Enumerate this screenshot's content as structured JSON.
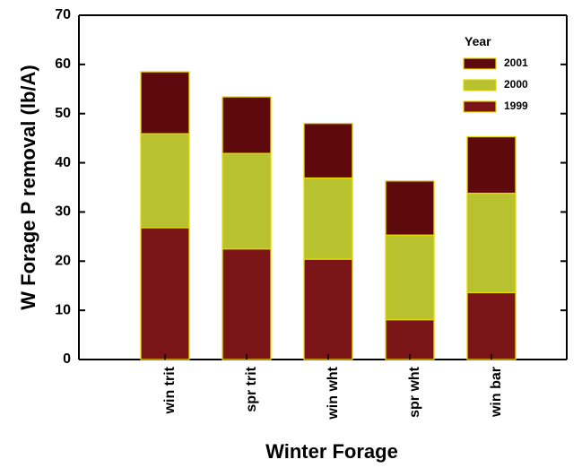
{
  "chart_data": {
    "type": "bar",
    "stacked": true,
    "categories": [
      "win trit",
      "spr trit",
      "win wht",
      "spr wht",
      "win bar"
    ],
    "series": [
      {
        "name": "1999",
        "color": "#7b1416",
        "values": [
          26.8,
          22.5,
          20.4,
          8.1,
          13.6
        ]
      },
      {
        "name": "2000",
        "color": "#b8c12e",
        "values": [
          19.1,
          19.4,
          16.5,
          17.2,
          20.2
        ]
      },
      {
        "name": "2001",
        "color": "#5e0a0c",
        "values": [
          12.6,
          11.5,
          11.1,
          11.0,
          11.5
        ]
      }
    ],
    "xlabel": "Winter Forage",
    "ylabel": "W Forage P removal (lb/A)",
    "ylim": [
      0,
      70
    ],
    "yticks": [
      0,
      10,
      20,
      30,
      40,
      50,
      60,
      70
    ],
    "grid": false,
    "legend": {
      "title": "Year",
      "placement": "top-right",
      "order": [
        "2001",
        "2000",
        "1999"
      ]
    },
    "bar_edge_color": "#e6d800"
  }
}
